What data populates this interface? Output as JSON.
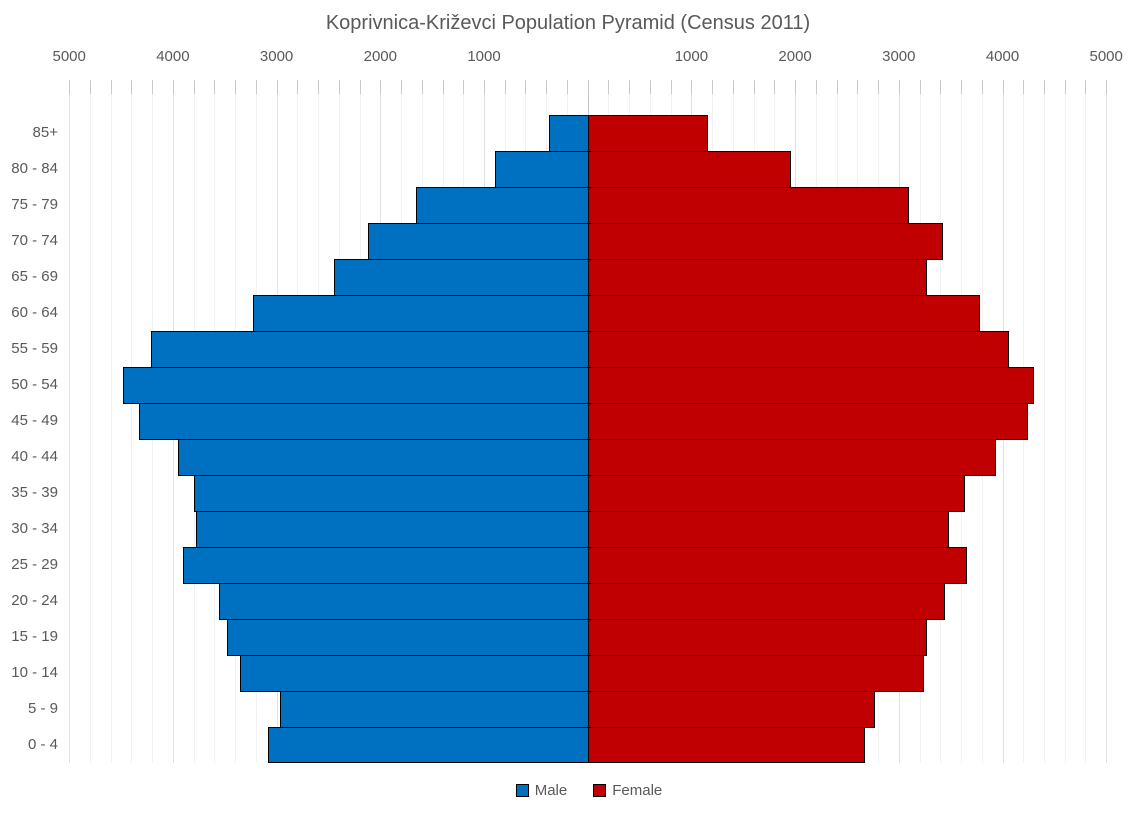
{
  "title": "Koprivnica-Križevci Population Pyramid (Census 2011)",
  "colors": {
    "male": "#0070C0",
    "female": "#C00000",
    "bar_border": "#000000",
    "text": "#595959",
    "grid_minor": "#F1F1F1",
    "grid_major": "#E2E2E2",
    "grid_center": "#C6C6C6",
    "tick": "#C9C9C9",
    "background": "#FFFFFF"
  },
  "legend": {
    "position": "bottom",
    "items": [
      {
        "label": "Male",
        "color": "#0070C0"
      },
      {
        "label": "Female",
        "color": "#C00000"
      }
    ]
  },
  "chart_data": {
    "type": "bar",
    "subtype": "population_pyramid",
    "orientation": "horizontal_butterfly",
    "title": "Koprivnica-Križevci Population Pyramid (Census 2011)",
    "categories_top_to_bottom": [
      "85+",
      "80 - 84",
      "75 - 79",
      "70 - 74",
      "65 - 69",
      "60 - 64",
      "55 - 59",
      "50 - 54",
      "45 - 49",
      "40 - 44",
      "35 - 39",
      "30 - 34",
      "25 - 29",
      "20 - 24",
      "15 - 19",
      "10 - 14",
      "5 - 9",
      "0 - 4"
    ],
    "series": [
      {
        "name": "Male",
        "side": "left",
        "color": "#0070C0",
        "values": [
          370,
          890,
          1660,
          2120,
          2450,
          3230,
          4210,
          4480,
          4330,
          3950,
          3800,
          3780,
          3900,
          3560,
          3480,
          3350,
          2970,
          3080
        ]
      },
      {
        "name": "Female",
        "side": "right",
        "color": "#C00000",
        "values": [
          1150,
          1950,
          3090,
          3420,
          3260,
          3770,
          4050,
          4290,
          4240,
          3930,
          3630,
          3470,
          3650,
          3440,
          3260,
          3230,
          2760,
          2660
        ]
      }
    ],
    "x_axis": {
      "label_position": "top",
      "max_each_side": 5000,
      "major_interval": 1000,
      "minor_gridline_interval": 200,
      "labels_left": [
        "5000",
        "4000",
        "3000",
        "2000",
        "1000"
      ],
      "labels_right": [
        "1000",
        "2000",
        "3000",
        "4000",
        "5000"
      ]
    },
    "grid": true,
    "legend_position": "bottom"
  }
}
